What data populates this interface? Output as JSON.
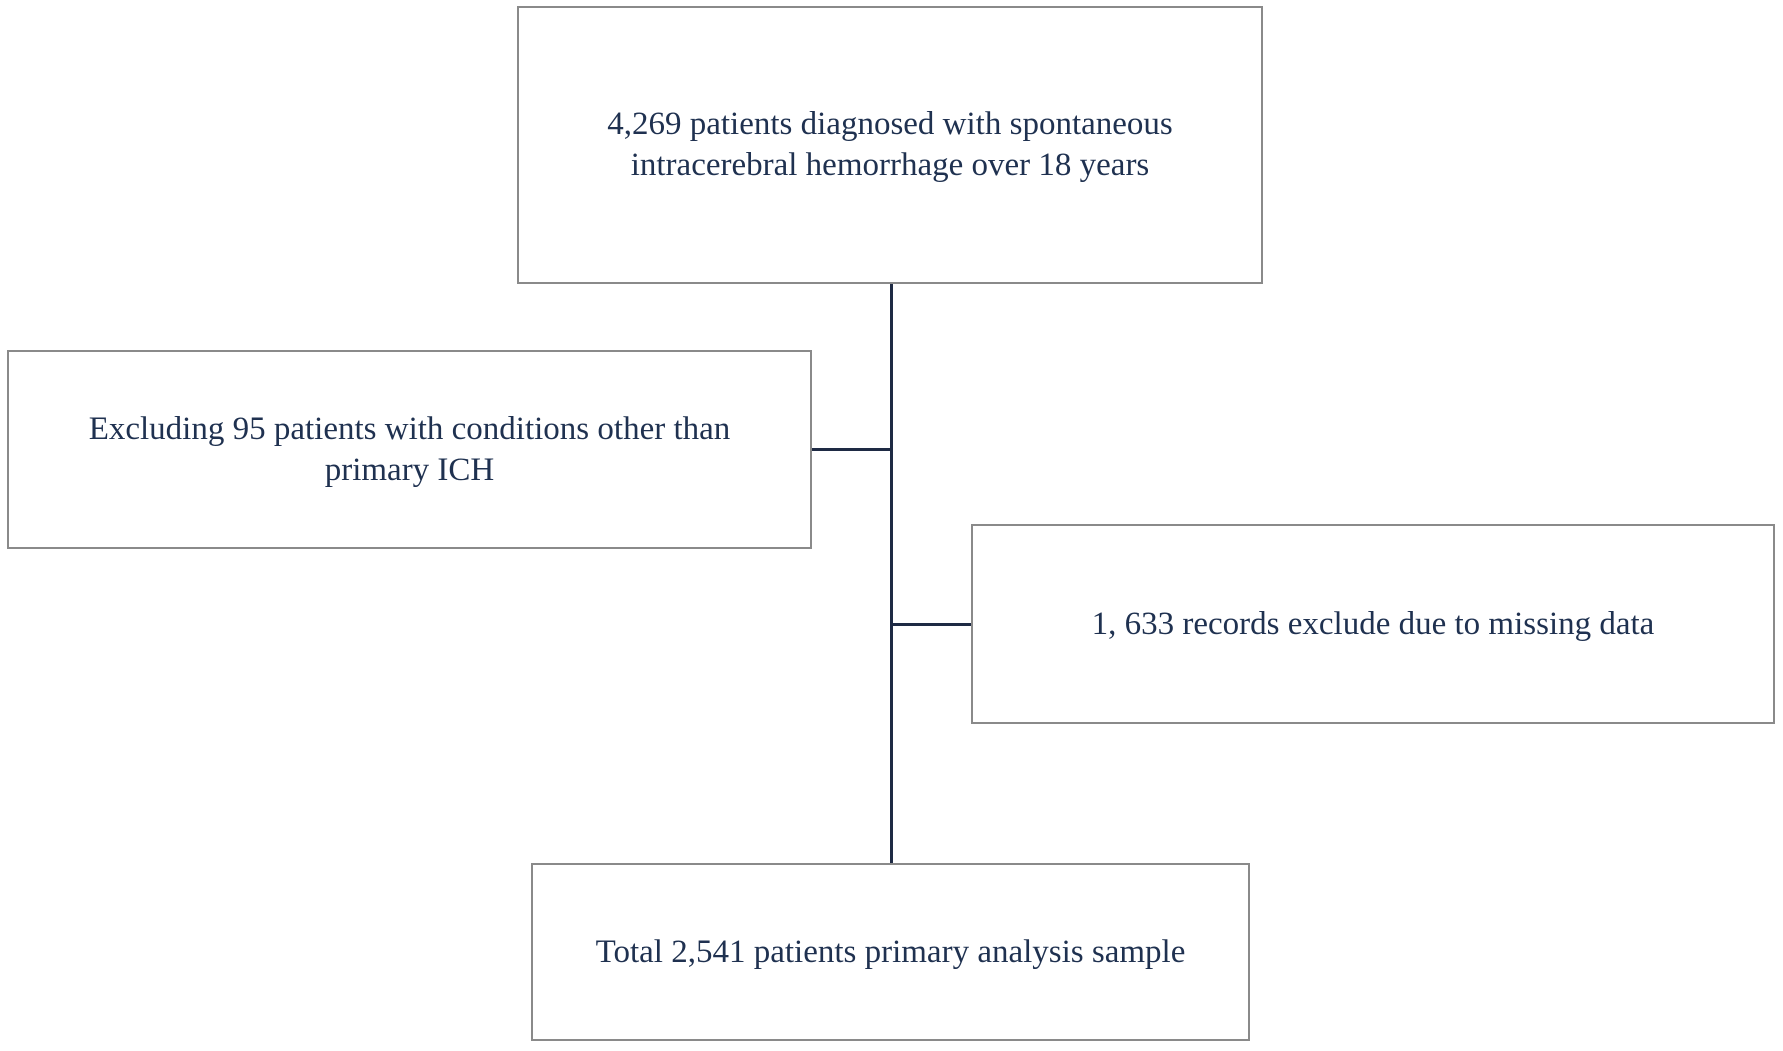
{
  "nodes": {
    "diagnosed": {
      "id": "top",
      "text": "4,269 patients diagnosed with spontaneous intracerebral hemorrhage over 18 years"
    },
    "excluded_conditions": {
      "id": "left",
      "text": "Excluding 95 patients with conditions other than primary ICH"
    },
    "excluded_missing": {
      "id": "right",
      "text": "1, 633 records exclude due to missing data"
    },
    "final_sample": {
      "id": "bottom",
      "text": "Total 2,541 patients primary analysis sample"
    }
  },
  "edges": [
    {
      "from": "diagnosed",
      "to": "final_sample",
      "type": "vertical-spine"
    },
    {
      "from": "spine",
      "to": "excluded_conditions",
      "type": "horizontal-stub-left"
    },
    {
      "from": "spine",
      "to": "excluded_missing",
      "type": "horizontal-stub-right"
    }
  ],
  "colors": {
    "background": "#ffffff",
    "text": "#1f3150",
    "box_border": "#8a8a8a",
    "connector_line": "#1e2a44"
  }
}
